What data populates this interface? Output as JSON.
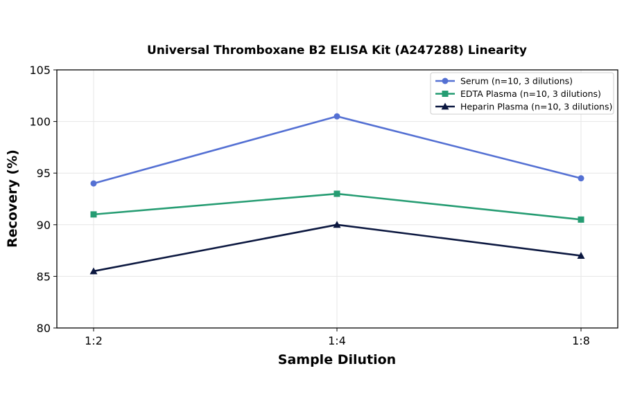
{
  "chart_data": {
    "type": "line",
    "title": "Universal Thromboxane B2 ELISA Kit (A247288) Linearity",
    "xlabel": "Sample Dilution",
    "ylabel": "Recovery (%)",
    "categories": [
      "1:2",
      "1:4",
      "1:8"
    ],
    "ylim": [
      80,
      105
    ],
    "yticks": [
      80,
      85,
      90,
      95,
      100,
      105
    ],
    "grid": true,
    "legend_position": "top-right",
    "series": [
      {
        "name": "Serum (n=10, 3 dilutions)",
        "values": [
          94,
          100.5,
          94.5
        ],
        "color": "#5470d3",
        "marker": "circle"
      },
      {
        "name": "EDTA Plasma (n=10, 3 dilutions)",
        "values": [
          91,
          93,
          90.5
        ],
        "color": "#259c72",
        "marker": "square"
      },
      {
        "name": "Heparin Plasma (n=10, 3 dilutions)",
        "values": [
          85.5,
          90,
          87
        ],
        "color": "#0c1840",
        "marker": "triangle"
      }
    ]
  }
}
